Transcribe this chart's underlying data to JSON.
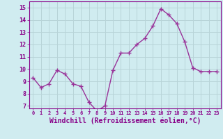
{
  "x": [
    0,
    1,
    2,
    3,
    4,
    5,
    6,
    7,
    8,
    9,
    10,
    11,
    12,
    13,
    14,
    15,
    16,
    17,
    18,
    19,
    20,
    21,
    22,
    23
  ],
  "y": [
    9.3,
    8.5,
    8.8,
    9.9,
    9.6,
    8.8,
    8.6,
    7.3,
    6.6,
    7.0,
    9.9,
    11.3,
    11.3,
    12.0,
    12.5,
    13.5,
    14.9,
    14.4,
    13.7,
    12.2,
    10.1,
    9.8,
    9.8,
    9.8
  ],
  "line_color": "#993399",
  "marker": "+",
  "markersize": 4,
  "linewidth": 1.0,
  "xlabel": "Windchill (Refroidissement éolien,°C)",
  "xlabel_fontsize": 7,
  "xtick_labels": [
    "0",
    "1",
    "2",
    "3",
    "4",
    "5",
    "6",
    "7",
    "8",
    "9",
    "10",
    "11",
    "12",
    "13",
    "14",
    "15",
    "16",
    "17",
    "18",
    "19",
    "20",
    "21",
    "22",
    "23"
  ],
  "ytick_labels": [
    "7",
    "8",
    "9",
    "10",
    "11",
    "12",
    "13",
    "14",
    "15"
  ],
  "ytick_vals": [
    7,
    8,
    9,
    10,
    11,
    12,
    13,
    14,
    15
  ],
  "ylim": [
    6.8,
    15.5
  ],
  "xlim": [
    -0.5,
    23.5
  ],
  "bg_color": "#d0ecf0",
  "grid_color": "#b8d4d8",
  "tick_label_color": "#880088",
  "xlabel_color": "#880088"
}
